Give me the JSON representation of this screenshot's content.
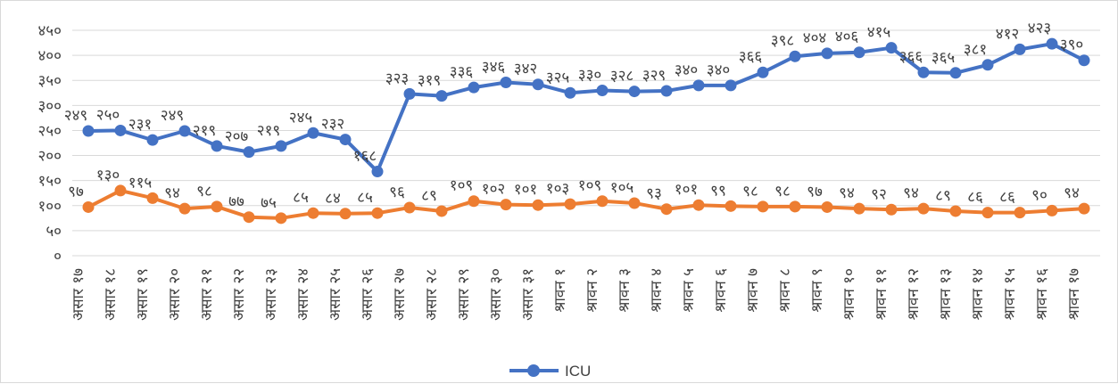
{
  "chart_data": {
    "type": "line",
    "title": "",
    "xlabel": "",
    "ylabel": "",
    "ylim": [
      0,
      450
    ],
    "yticks": [
      "०",
      "५०",
      "१००",
      "१५०",
      "२००",
      "२५०",
      "३००",
      "३५०",
      "४००",
      "४५०"
    ],
    "categories": [
      "असार १७",
      "असार १८",
      "असार १९",
      "असार २०",
      "असार २१",
      "असार २२",
      "असार २३",
      "असार २४",
      "असार २५",
      "असार २६",
      "असार २७",
      "असार २८",
      "असार २९",
      "असार ३०",
      "असार ३१",
      "श्रावन १",
      "श्रावन २",
      "श्रावन ३",
      "श्रावन ४",
      "श्रावन ५",
      "श्रावन ६",
      "श्रावन ७",
      "श्रावन ८",
      "श्रावन ९",
      "श्रावन १०",
      "श्रावन ११",
      "श्रावन १२",
      "श्रावन १३",
      "श्रावन १४",
      "श्रावन १५",
      "श्रावन १६",
      "श्रावन १७"
    ],
    "grid": true,
    "legend_position": "bottom",
    "series": [
      {
        "name": "ICU",
        "color": "#4472C4",
        "values": [
          249,
          250,
          231,
          249,
          219,
          207,
          219,
          245,
          232,
          168,
          323,
          319,
          336,
          346,
          342,
          325,
          330,
          328,
          329,
          340,
          340,
          366,
          398,
          404,
          406,
          415,
          366,
          365,
          381,
          412,
          423,
          390
        ],
        "labels": [
          "२४९",
          "२५०",
          "२३१",
          "२४९",
          "२१९",
          "२०७",
          "२१९",
          "२४५",
          "२३२",
          "१६८",
          "३२३",
          "३१९",
          "३३६",
          "३४६",
          "३४२",
          "३२५",
          "३३०",
          "३२८",
          "३२९",
          "३४०",
          "३४०",
          "३६६",
          "३९८",
          "४०४",
          "४०६",
          "४१५",
          "३६६",
          "३६५",
          "३८१",
          "४१२",
          "४२३",
          "३९०"
        ]
      },
      {
        "name": "",
        "color": "#ED7D31",
        "values": [
          97,
          130,
          115,
          94,
          98,
          77,
          75,
          85,
          84,
          85,
          96,
          89,
          109,
          102,
          101,
          103,
          109,
          105,
          93,
          101,
          99,
          98,
          98,
          97,
          94,
          92,
          94,
          89,
          86,
          86,
          90,
          94
        ],
        "labels": [
          "९७",
          "१३०",
          "११५",
          "९४",
          "९८",
          "७७",
          "७५",
          "८५",
          "८४",
          "८५",
          "९६",
          "८९",
          "१०९",
          "१०२",
          "१०१",
          "१०३",
          "१०९",
          "१०५",
          "९३",
          "१०१",
          "९९",
          "९८",
          "९८",
          "९७",
          "९४",
          "९२",
          "९४",
          "८९",
          "८६",
          "८६",
          "९०",
          "९४"
        ]
      }
    ]
  }
}
